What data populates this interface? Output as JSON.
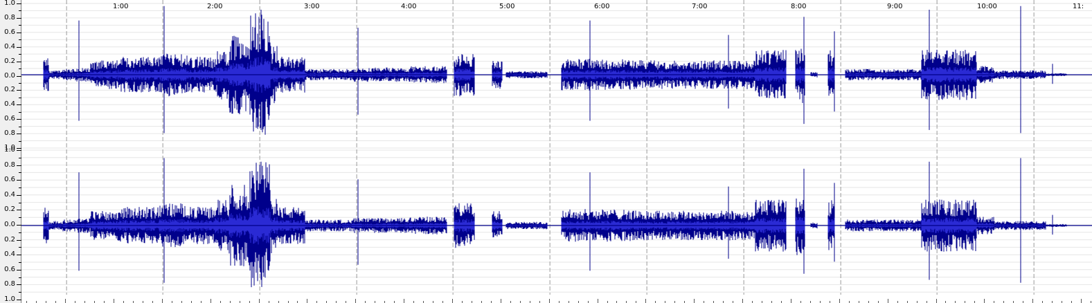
{
  "timeline": {
    "labels": [
      "1:00",
      "2:00",
      "3:00",
      "4:00",
      "5:00",
      "6:00",
      "7:00",
      "8:00",
      "9:00",
      "10:00",
      "11:"
    ]
  },
  "amplitude_ruler": {
    "channels": [
      {
        "labels": [
          "1.0",
          "0.8",
          "0.6",
          "0.4",
          "0.2",
          "0.0",
          "0.2",
          "0.4",
          "0.6",
          "0.8",
          "1.0"
        ]
      },
      {
        "labels": [
          "1.0",
          "0.8",
          "0.6",
          "0.4",
          "0.2",
          "0.0",
          "0.2",
          "0.4",
          "0.6",
          "0.8",
          "1.0"
        ]
      }
    ]
  },
  "colors": {
    "waveform": "#00008b",
    "waveform_rms": "#2a2ad4",
    "gridline": "#e6e6e6",
    "time_marker": "#9a9a9a",
    "background": "#ffffff"
  }
}
